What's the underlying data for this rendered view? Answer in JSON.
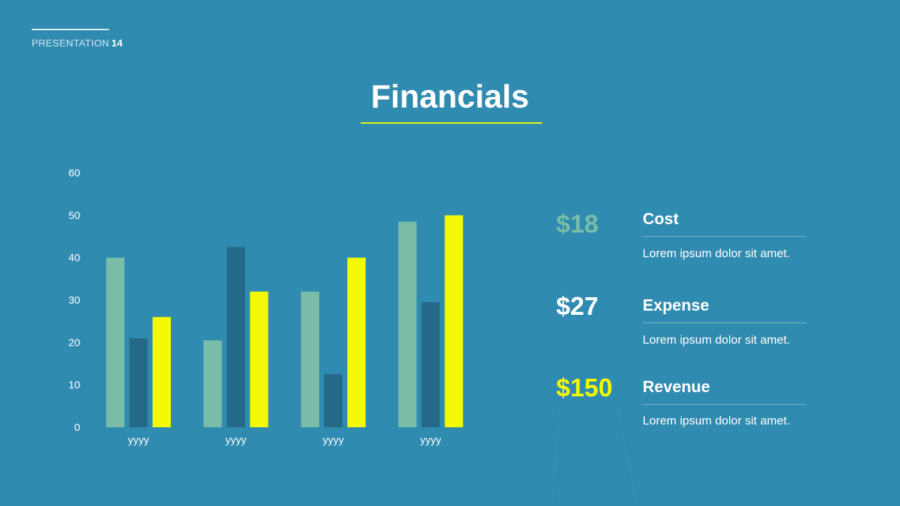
{
  "header": {
    "label": "PRESENTATION",
    "number": "14"
  },
  "title": "Financials",
  "colors": {
    "background": "#308bb1",
    "accent_yellow": "#f3fa03",
    "teal": "#79bca8",
    "navy": "#246987",
    "white": "#ffffff"
  },
  "chart_data": {
    "type": "bar",
    "categories": [
      "yyyy",
      "yyyy",
      "yyyy",
      "yyyy"
    ],
    "series": [
      {
        "values": [
          40,
          20.5,
          32,
          48.5
        ],
        "color": "#79bca8"
      },
      {
        "values": [
          21,
          42.5,
          12.5,
          29.5
        ],
        "color": "#246987"
      },
      {
        "values": [
          26,
          32,
          40,
          50
        ],
        "color": "#f3fa03"
      }
    ],
    "ylim": [
      0,
      60
    ],
    "yticks": [
      0,
      10,
      20,
      30,
      40,
      50,
      60
    ],
    "grid": false,
    "legend": "none"
  },
  "metrics": [
    {
      "value": "$18",
      "label": "Cost",
      "desc": "Lorem ipsum dolor sit amet.",
      "color": "#79bca8"
    },
    {
      "value": "$27",
      "label": "Expense",
      "desc": "Lorem ipsum dolor sit amet.",
      "color": "#ffffff"
    },
    {
      "value": "$150",
      "label": "Revenue",
      "desc": "Lorem ipsum dolor sit amet.",
      "color": "#f3fa03"
    }
  ]
}
